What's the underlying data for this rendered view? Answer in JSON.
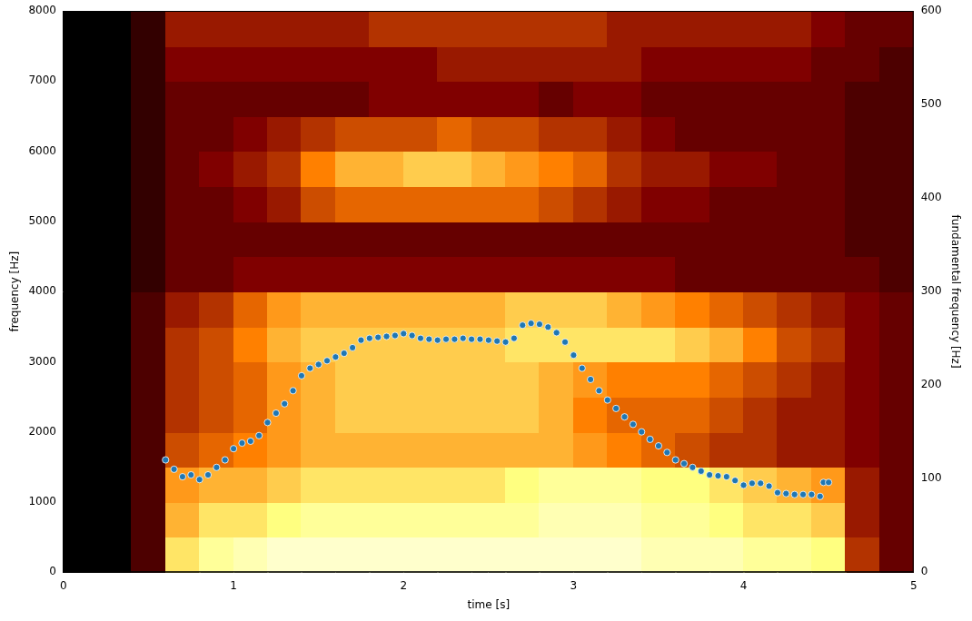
{
  "chart_data": {
    "type": "scatter",
    "xlabel": "time [s]",
    "ylabel": "frequency [Hz]",
    "y2label": "fundamental frequency [Hz]",
    "xlim": [
      0,
      5
    ],
    "xticks": [
      0,
      1,
      2,
      3,
      4,
      5
    ],
    "ylim": [
      0,
      8000
    ],
    "yticks": [
      0,
      1000,
      2000,
      3000,
      4000,
      5000,
      6000,
      7000,
      8000
    ],
    "y2lim": [
      0,
      600
    ],
    "y2ticks": [
      0,
      100,
      200,
      300,
      400,
      500,
      600
    ],
    "grid": false,
    "spectrogram": {
      "time_edges": [
        0,
        0.2,
        0.4,
        0.6,
        0.8,
        1.0,
        1.2,
        1.4,
        1.6,
        1.8,
        2.0,
        2.2,
        2.4,
        2.6,
        2.8,
        3.0,
        3.2,
        3.4,
        3.6,
        3.8,
        4.0,
        4.2,
        4.4,
        4.6,
        4.8,
        5.0
      ],
      "frequency_edges": [
        0,
        500,
        1000,
        1500,
        2000,
        2500,
        3000,
        3500,
        4000,
        4500,
        5000,
        5500,
        6000,
        6500,
        7000,
        7500,
        8000
      ],
      "intensity": [
        [
          0,
          0,
          0.15,
          0.7,
          0.8,
          0.85,
          0.9,
          0.9,
          0.9,
          0.9,
          0.9,
          0.9,
          0.9,
          0.9,
          0.9,
          0.9,
          0.9,
          0.85,
          0.85,
          0.85,
          0.8,
          0.8,
          0.75,
          0.35,
          0.2
        ],
        [
          0,
          0,
          0.15,
          0.6,
          0.7,
          0.7,
          0.75,
          0.8,
          0.8,
          0.8,
          0.8,
          0.8,
          0.8,
          0.8,
          0.85,
          0.85,
          0.85,
          0.8,
          0.8,
          0.75,
          0.7,
          0.7,
          0.65,
          0.3,
          0.2
        ],
        [
          0,
          0,
          0.15,
          0.55,
          0.6,
          0.6,
          0.65,
          0.7,
          0.7,
          0.7,
          0.7,
          0.7,
          0.7,
          0.75,
          0.8,
          0.8,
          0.8,
          0.75,
          0.75,
          0.7,
          0.65,
          0.6,
          0.55,
          0.3,
          0.2
        ],
        [
          0,
          0,
          0.15,
          0.4,
          0.45,
          0.5,
          0.55,
          0.6,
          0.6,
          0.6,
          0.6,
          0.6,
          0.6,
          0.6,
          0.6,
          0.55,
          0.5,
          0.45,
          0.4,
          0.35,
          0.35,
          0.3,
          0.3,
          0.25,
          0.2
        ],
        [
          0,
          0,
          0.15,
          0.35,
          0.4,
          0.45,
          0.55,
          0.6,
          0.65,
          0.65,
          0.65,
          0.65,
          0.65,
          0.65,
          0.6,
          0.5,
          0.45,
          0.45,
          0.45,
          0.4,
          0.35,
          0.3,
          0.3,
          0.25,
          0.2
        ],
        [
          0,
          0,
          0.15,
          0.35,
          0.4,
          0.45,
          0.55,
          0.6,
          0.65,
          0.65,
          0.65,
          0.65,
          0.65,
          0.65,
          0.6,
          0.55,
          0.5,
          0.5,
          0.5,
          0.45,
          0.4,
          0.35,
          0.3,
          0.25,
          0.2
        ],
        [
          0,
          0,
          0.15,
          0.35,
          0.4,
          0.5,
          0.6,
          0.65,
          0.65,
          0.65,
          0.65,
          0.65,
          0.65,
          0.7,
          0.7,
          0.7,
          0.7,
          0.7,
          0.65,
          0.6,
          0.5,
          0.4,
          0.35,
          0.25,
          0.2
        ],
        [
          0,
          0,
          0.15,
          0.3,
          0.35,
          0.45,
          0.55,
          0.6,
          0.6,
          0.6,
          0.6,
          0.6,
          0.6,
          0.65,
          0.65,
          0.65,
          0.6,
          0.55,
          0.5,
          0.45,
          0.4,
          0.35,
          0.3,
          0.25,
          0.2
        ],
        [
          0,
          0,
          0.1,
          0.2,
          0.2,
          0.25,
          0.25,
          0.25,
          0.25,
          0.25,
          0.25,
          0.25,
          0.25,
          0.25,
          0.25,
          0.25,
          0.25,
          0.25,
          0.2,
          0.2,
          0.2,
          0.2,
          0.2,
          0.2,
          0.15
        ],
        [
          0,
          0,
          0.1,
          0.2,
          0.2,
          0.2,
          0.2,
          0.2,
          0.2,
          0.2,
          0.2,
          0.2,
          0.2,
          0.2,
          0.2,
          0.2,
          0.2,
          0.2,
          0.2,
          0.2,
          0.2,
          0.2,
          0.2,
          0.15,
          0.15
        ],
        [
          0,
          0,
          0.1,
          0.2,
          0.2,
          0.25,
          0.3,
          0.4,
          0.45,
          0.45,
          0.45,
          0.45,
          0.45,
          0.45,
          0.4,
          0.35,
          0.3,
          0.25,
          0.25,
          0.2,
          0.2,
          0.2,
          0.2,
          0.15,
          0.15
        ],
        [
          0,
          0,
          0.1,
          0.2,
          0.25,
          0.3,
          0.35,
          0.5,
          0.6,
          0.6,
          0.65,
          0.65,
          0.6,
          0.55,
          0.5,
          0.45,
          0.35,
          0.3,
          0.3,
          0.25,
          0.25,
          0.2,
          0.2,
          0.15,
          0.15
        ],
        [
          0,
          0,
          0.1,
          0.2,
          0.2,
          0.25,
          0.3,
          0.35,
          0.4,
          0.4,
          0.4,
          0.45,
          0.4,
          0.4,
          0.35,
          0.35,
          0.3,
          0.25,
          0.2,
          0.2,
          0.2,
          0.2,
          0.2,
          0.15,
          0.15
        ],
        [
          0,
          0,
          0.1,
          0.2,
          0.2,
          0.2,
          0.2,
          0.2,
          0.2,
          0.25,
          0.25,
          0.25,
          0.25,
          0.25,
          0.2,
          0.25,
          0.25,
          0.2,
          0.2,
          0.2,
          0.2,
          0.2,
          0.2,
          0.15,
          0.15
        ],
        [
          0,
          0,
          0.1,
          0.25,
          0.25,
          0.25,
          0.25,
          0.25,
          0.25,
          0.25,
          0.25,
          0.3,
          0.3,
          0.3,
          0.3,
          0.3,
          0.3,
          0.25,
          0.25,
          0.25,
          0.25,
          0.25,
          0.2,
          0.2,
          0.15
        ],
        [
          0,
          0,
          0.1,
          0.3,
          0.3,
          0.3,
          0.3,
          0.3,
          0.3,
          0.35,
          0.35,
          0.35,
          0.35,
          0.35,
          0.35,
          0.35,
          0.3,
          0.3,
          0.3,
          0.3,
          0.3,
          0.3,
          0.25,
          0.2,
          0.2
        ]
      ]
    },
    "series": [
      {
        "axis": "y2",
        "color": "#1f77b4",
        "marker": "circle",
        "x": [
          0.6,
          0.65,
          0.7,
          0.75,
          0.8,
          0.85,
          0.9,
          0.95,
          1.0,
          1.05,
          1.1,
          1.15,
          1.2,
          1.25,
          1.3,
          1.35,
          1.4,
          1.45,
          1.5,
          1.55,
          1.6,
          1.65,
          1.7,
          1.75,
          1.8,
          1.85,
          1.9,
          1.95,
          2.0,
          2.05,
          2.1,
          2.15,
          2.2,
          2.25,
          2.3,
          2.35,
          2.4,
          2.45,
          2.5,
          2.55,
          2.6,
          2.65,
          2.7,
          2.75,
          2.8,
          2.85,
          2.9,
          2.95,
          3.0,
          3.05,
          3.1,
          3.15,
          3.2,
          3.25,
          3.3,
          3.35,
          3.4,
          3.45,
          3.5,
          3.55,
          3.6,
          3.65,
          3.7,
          3.75,
          3.8,
          3.85,
          3.9,
          3.95,
          4.0,
          4.05,
          4.1,
          4.15,
          4.2,
          4.25,
          4.3,
          4.35,
          4.4,
          4.45,
          4.47,
          4.5
        ],
        "values": [
          120,
          110,
          102,
          104,
          99,
          104,
          112,
          120,
          132,
          138,
          140,
          146,
          160,
          170,
          180,
          194,
          210,
          218,
          222,
          226,
          230,
          234,
          240,
          248,
          250,
          251,
          252,
          253,
          255,
          253,
          250,
          249,
          248,
          249,
          249,
          250,
          249,
          249,
          248,
          247,
          246,
          250,
          264,
          266,
          265,
          262,
          256,
          246,
          232,
          218,
          206,
          194,
          184,
          175,
          166,
          158,
          150,
          142,
          135,
          128,
          120,
          116,
          112,
          108,
          104,
          103,
          102,
          98,
          93,
          95,
          95,
          92,
          85,
          84,
          83,
          83,
          83,
          81,
          96,
          96
        ]
      }
    ]
  }
}
